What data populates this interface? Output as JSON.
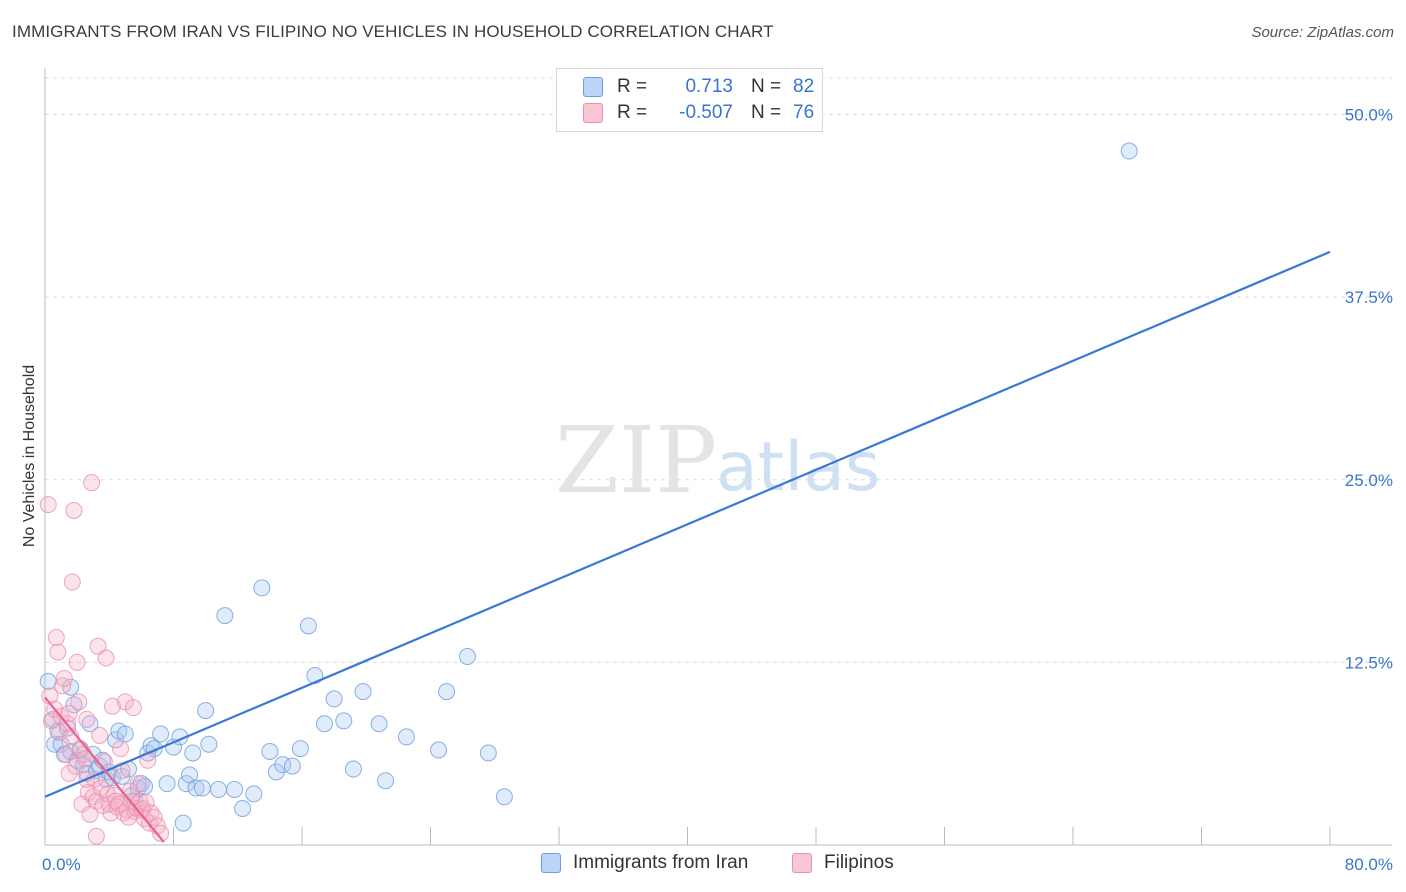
{
  "header": {
    "title": "IMMIGRANTS FROM IRAN VS FILIPINO NO VEHICLES IN HOUSEHOLD CORRELATION CHART",
    "source": "Source: ZipAtlas.com"
  },
  "watermark": {
    "zip": "ZIP",
    "atlas": "atlas"
  },
  "legend_stats": [
    {
      "r_label": "R =",
      "r_value": "0.713",
      "n_label": "N =",
      "n_value": "82"
    },
    {
      "r_label": "R =",
      "r_value": "-0.507",
      "n_label": "N =",
      "n_value": "76"
    }
  ],
  "colors": {
    "blue": "#3a78d4",
    "blue_fill": "#a9c8f0",
    "pink": "#e8628f",
    "pink_fill": "#f4b3c8",
    "tick_text": "#3a76c8",
    "grid": "#dcdcdc"
  },
  "chart_data": {
    "type": "scatter",
    "title": "IMMIGRANTS FROM IRAN VS FILIPINO NO VEHICLES IN HOUSEHOLD CORRELATION CHART",
    "xlabel": "",
    "ylabel": "No Vehicles in Household",
    "xlim": [
      0,
      80
    ],
    "ylim": [
      0,
      52.5
    ],
    "x_tick_labels": [
      "0.0%",
      "80.0%"
    ],
    "y_ticks": [
      12.5,
      25.0,
      37.5,
      50.0
    ],
    "y_tick_labels": [
      "12.5%",
      "25.0%",
      "37.5%",
      "50.0%"
    ],
    "grid": "horizontal dashed",
    "legend_position": "bottom-center",
    "series": [
      {
        "name": "Immigrants from Iran",
        "color": "#3a78d4",
        "trendline": {
          "x": [
            0,
            80
          ],
          "y": [
            3.3,
            40.6
          ]
        },
        "points": [
          [
            0.2,
            11.2
          ],
          [
            0.5,
            8.6
          ],
          [
            0.6,
            6.9
          ],
          [
            0.8,
            7.8
          ],
          [
            1.0,
            6.9
          ],
          [
            1.2,
            6.2
          ],
          [
            1.4,
            8.0
          ],
          [
            1.6,
            10.8
          ],
          [
            1.6,
            6.4
          ],
          [
            1.8,
            9.6
          ],
          [
            2.0,
            5.8
          ],
          [
            2.2,
            6.5
          ],
          [
            2.4,
            5.5
          ],
          [
            2.6,
            4.9
          ],
          [
            2.8,
            8.3
          ],
          [
            3.0,
            6.2
          ],
          [
            3.2,
            5.1
          ],
          [
            3.4,
            5.4
          ],
          [
            3.6,
            5.8
          ],
          [
            3.8,
            4.5
          ],
          [
            4.0,
            5.0
          ],
          [
            4.2,
            4.6
          ],
          [
            4.4,
            7.2
          ],
          [
            4.6,
            7.8
          ],
          [
            4.8,
            4.7
          ],
          [
            5.0,
            7.6
          ],
          [
            5.2,
            5.2
          ],
          [
            5.4,
            3.4
          ],
          [
            5.6,
            3.0
          ],
          [
            5.8,
            3.9
          ],
          [
            6.0,
            4.2
          ],
          [
            6.2,
            4.0
          ],
          [
            6.4,
            6.3
          ],
          [
            6.6,
            6.8
          ],
          [
            6.8,
            6.6
          ],
          [
            7.2,
            7.6
          ],
          [
            7.6,
            4.2
          ],
          [
            8.0,
            6.7
          ],
          [
            8.4,
            7.4
          ],
          [
            8.6,
            1.5
          ],
          [
            8.8,
            4.2
          ],
          [
            9.0,
            4.8
          ],
          [
            9.2,
            6.3
          ],
          [
            9.4,
            3.9
          ],
          [
            9.8,
            3.9
          ],
          [
            10.0,
            9.2
          ],
          [
            10.2,
            6.9
          ],
          [
            10.8,
            3.8
          ],
          [
            11.2,
            15.7
          ],
          [
            11.8,
            3.8
          ],
          [
            12.3,
            2.5
          ],
          [
            13.0,
            3.5
          ],
          [
            13.5,
            17.6
          ],
          [
            14.0,
            6.4
          ],
          [
            14.4,
            5.0
          ],
          [
            14.8,
            5.5
          ],
          [
            15.4,
            5.4
          ],
          [
            15.9,
            6.6
          ],
          [
            16.4,
            15.0
          ],
          [
            16.8,
            11.6
          ],
          [
            17.4,
            8.3
          ],
          [
            18.0,
            10.0
          ],
          [
            18.6,
            8.5
          ],
          [
            19.2,
            5.2
          ],
          [
            19.8,
            10.5
          ],
          [
            20.8,
            8.3
          ],
          [
            21.2,
            4.4
          ],
          [
            22.5,
            7.4
          ],
          [
            24.5,
            6.5
          ],
          [
            25.0,
            10.5
          ],
          [
            26.3,
            12.9
          ],
          [
            27.6,
            6.3
          ],
          [
            28.6,
            3.3
          ],
          [
            67.5,
            47.5
          ]
        ]
      },
      {
        "name": "Filipinos",
        "color": "#e8628f",
        "trendline": {
          "x": [
            0,
            7.4
          ],
          "y": [
            10.1,
            0.2
          ]
        },
        "points": [
          [
            0.2,
            23.3
          ],
          [
            0.3,
            10.2
          ],
          [
            0.4,
            8.5
          ],
          [
            0.6,
            9.3
          ],
          [
            0.7,
            14.2
          ],
          [
            0.8,
            13.2
          ],
          [
            0.9,
            7.7
          ],
          [
            1.0,
            8.8
          ],
          [
            1.1,
            10.9
          ],
          [
            1.2,
            11.4
          ],
          [
            1.3,
            6.2
          ],
          [
            1.4,
            8.3
          ],
          [
            1.5,
            9.0
          ],
          [
            1.6,
            7.4
          ],
          [
            1.7,
            18.0
          ],
          [
            1.8,
            22.9
          ],
          [
            1.9,
            5.4
          ],
          [
            2.0,
            12.5
          ],
          [
            2.1,
            9.8
          ],
          [
            2.2,
            6.6
          ],
          [
            2.3,
            2.8
          ],
          [
            2.4,
            6.2
          ],
          [
            2.5,
            5.9
          ],
          [
            2.6,
            8.6
          ],
          [
            2.7,
            3.6
          ],
          [
            2.8,
            2.1
          ],
          [
            2.9,
            24.8
          ],
          [
            3.0,
            3.3
          ],
          [
            3.1,
            4.5
          ],
          [
            3.2,
            3.0
          ],
          [
            3.3,
            13.6
          ],
          [
            3.4,
            7.5
          ],
          [
            3.5,
            3.9
          ],
          [
            3.6,
            2.7
          ],
          [
            3.7,
            5.7
          ],
          [
            3.8,
            12.8
          ],
          [
            3.9,
            3.5
          ],
          [
            4.0,
            2.8
          ],
          [
            4.1,
            2.2
          ],
          [
            4.2,
            9.5
          ],
          [
            4.3,
            3.4
          ],
          [
            4.4,
            3.0
          ],
          [
            4.5,
            2.6
          ],
          [
            4.6,
            2.8
          ],
          [
            4.7,
            6.6
          ],
          [
            4.8,
            5.1
          ],
          [
            4.9,
            2.2
          ],
          [
            5.0,
            9.8
          ],
          [
            5.1,
            2.4
          ],
          [
            5.2,
            1.9
          ],
          [
            5.3,
            3.7
          ],
          [
            5.4,
            3.0
          ],
          [
            5.5,
            9.4
          ],
          [
            5.6,
            2.3
          ],
          [
            5.7,
            2.5
          ],
          [
            5.8,
            4.2
          ],
          [
            5.9,
            3.0
          ],
          [
            6.0,
            2.4
          ],
          [
            6.1,
            2.5
          ],
          [
            6.2,
            1.8
          ],
          [
            6.3,
            2.9
          ],
          [
            6.4,
            5.8
          ],
          [
            6.5,
            1.5
          ],
          [
            6.6,
            2.2
          ],
          [
            6.8,
            1.9
          ],
          [
            7.0,
            1.3
          ],
          [
            7.2,
            0.8
          ],
          [
            3.2,
            0.6
          ],
          [
            1.5,
            4.9
          ],
          [
            2.6,
            4.5
          ]
        ]
      }
    ]
  },
  "bottom_legend": [
    {
      "label": "Immigrants from Iran"
    },
    {
      "label": "Filipinos"
    }
  ]
}
